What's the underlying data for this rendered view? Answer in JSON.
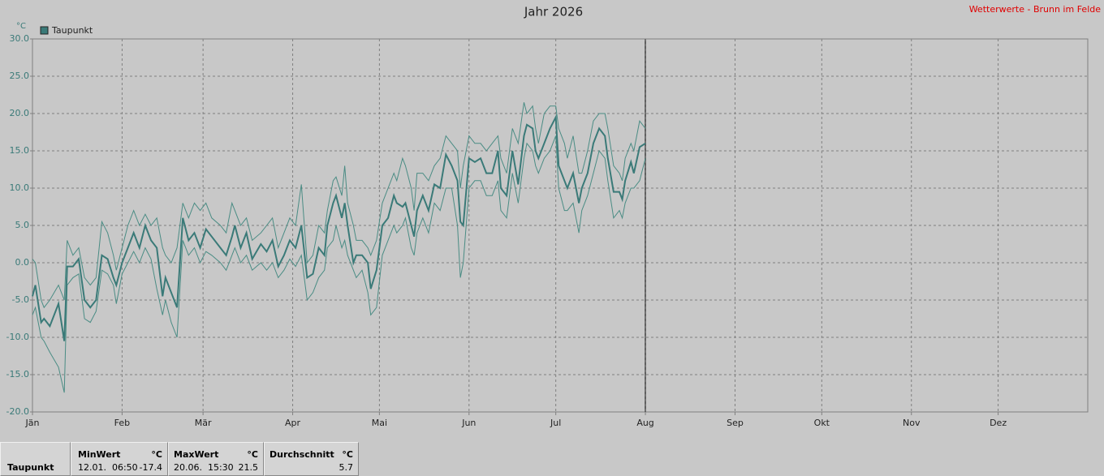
{
  "chart_data": {
    "type": "line",
    "title": "Jahr 2026",
    "source": "Wetterwerte - Brunn im Felde",
    "y_unit": "°C",
    "xlim": [
      1,
      366
    ],
    "xticks": [
      {
        "value": 1,
        "label": "Jän"
      },
      {
        "value": 32,
        "label": "Feb"
      },
      {
        "value": 60,
        "label": "Mär"
      },
      {
        "value": 91,
        "label": "Apr"
      },
      {
        "value": 121,
        "label": "Mai"
      },
      {
        "value": 152,
        "label": "Jun"
      },
      {
        "value": 182,
        "label": "Jul"
      },
      {
        "value": 213,
        "label": "Aug"
      },
      {
        "value": 244,
        "label": "Sep"
      },
      {
        "value": 274,
        "label": "Okt"
      },
      {
        "value": 305,
        "label": "Nov"
      },
      {
        "value": 335,
        "label": "Dez"
      }
    ],
    "ylim": [
      -20,
      30
    ],
    "yticks": [
      {
        "value": -20,
        "label": "-20.0"
      },
      {
        "value": -15,
        "label": "-15.0"
      },
      {
        "value": -10,
        "label": "-10.0"
      },
      {
        "value": -5,
        "label": "-5.0"
      },
      {
        "value": 0,
        "label": "0.0"
      },
      {
        "value": 5,
        "label": "5.0"
      },
      {
        "value": 10,
        "label": "10.0"
      },
      {
        "value": 15,
        "label": "15.0"
      },
      {
        "value": 20,
        "label": "20.0"
      },
      {
        "value": 25,
        "label": "25.0"
      },
      {
        "value": 30,
        "label": "30.0"
      }
    ],
    "grid": true,
    "x": [
      1,
      2,
      4,
      5,
      7,
      10,
      12,
      13,
      15,
      17,
      19,
      21,
      23,
      25,
      27,
      29,
      30,
      32,
      34,
      36,
      38,
      40,
      42,
      44,
      46,
      47,
      49,
      51,
      53,
      55,
      57,
      59,
      61,
      63,
      66,
      68,
      70,
      71,
      73,
      75,
      77,
      80,
      82,
      84,
      86,
      88,
      90,
      92,
      94,
      96,
      98,
      100,
      102,
      103,
      105,
      106,
      108,
      109,
      110,
      112,
      113,
      115,
      117,
      118,
      120,
      122,
      124,
      126,
      127,
      129,
      130,
      132,
      133,
      134,
      136,
      138,
      140,
      142,
      144,
      146,
      148,
      149,
      150,
      152,
      154,
      156,
      158,
      160,
      162,
      163,
      165,
      167,
      169,
      171,
      172,
      174,
      175,
      176,
      178,
      180,
      182,
      183,
      185,
      186,
      188,
      190,
      191,
      193,
      195,
      197,
      199,
      200,
      202,
      204,
      205,
      206,
      208,
      209,
      211,
      213
    ],
    "series": [
      {
        "name": "Taupunkt",
        "color": "#3a7a78",
        "values": [
          -4.5,
          -3,
          -8,
          -7.5,
          -8.5,
          -5.5,
          -10.5,
          -0.5,
          -0.5,
          0.5,
          -5,
          -6,
          -5,
          1,
          0.5,
          -2,
          -3,
          0,
          2,
          4,
          2,
          5,
          3,
          2,
          -4.5,
          -2,
          -4,
          -6,
          6,
          3,
          4,
          2,
          4.5,
          3.5,
          2,
          1,
          3.5,
          5,
          2,
          4,
          0.5,
          2.5,
          1.5,
          3,
          -0.5,
          1,
          3,
          2,
          5,
          -2,
          -1.5,
          2,
          1,
          5,
          8,
          9,
          6,
          8,
          5,
          0,
          1,
          1,
          0,
          -3.5,
          -1,
          5,
          6,
          9,
          8,
          7.5,
          8,
          5,
          3.5,
          7,
          9,
          7,
          10.5,
          10,
          14.5,
          13,
          11,
          5.5,
          5,
          14,
          13.5,
          14,
          12,
          12,
          15,
          10,
          9,
          15,
          10.5,
          17,
          18.5,
          18,
          15,
          14,
          16,
          18,
          19.5,
          13,
          11,
          10,
          12,
          8,
          10,
          12,
          16,
          18,
          17,
          14,
          9.5,
          9.5,
          8.5,
          11,
          13.5,
          12,
          15.5,
          16
        ]
      },
      {
        "color": "#4a8c84",
        "values": [
          -7,
          -6,
          -10,
          -10.5,
          -12,
          -14,
          -17.4,
          -3,
          -2,
          -1.5,
          -7.5,
          -8,
          -6.5,
          -1,
          -1.5,
          -3,
          -5.5,
          -1.5,
          0,
          1.5,
          0,
          2,
          0.5,
          -3.5,
          -7,
          -5,
          -8,
          -10,
          3,
          1,
          2,
          0,
          1.5,
          1,
          0,
          -1,
          1,
          2,
          0,
          1,
          -1,
          0,
          -1,
          0,
          -2,
          -1,
          0.5,
          -0.5,
          1,
          -5,
          -4,
          -2,
          -1,
          2,
          3,
          5,
          2,
          3,
          1,
          -1,
          -2,
          -1,
          -4,
          -7,
          -6,
          1,
          3,
          5,
          4,
          5,
          6,
          2,
          1,
          4,
          6,
          4,
          8,
          7,
          10,
          10,
          5,
          -2,
          0,
          10,
          11,
          11,
          9,
          9,
          11,
          7,
          6,
          12,
          8,
          14,
          16,
          15,
          13,
          12,
          14,
          15,
          17,
          10,
          7,
          7,
          8,
          4,
          7,
          9,
          12,
          15,
          14,
          11,
          6,
          7,
          6,
          8,
          10,
          10,
          11,
          14
        ]
      },
      {
        "color": "#4a8c84",
        "values": [
          0.5,
          0,
          -5,
          -6,
          -5,
          -3,
          -5,
          3,
          1,
          2,
          -2,
          -3,
          -2,
          5.5,
          4,
          1,
          -1,
          2,
          5,
          7,
          5,
          6.5,
          5,
          6,
          2,
          1,
          0,
          2,
          8,
          6,
          8,
          7,
          8,
          6,
          5,
          4,
          8,
          7,
          5,
          6,
          3,
          4,
          5,
          6,
          2,
          4,
          6,
          5,
          10.5,
          0,
          1,
          5,
          4,
          7,
          11,
          11.5,
          9,
          13,
          8,
          5,
          3,
          3,
          2,
          1,
          3,
          8,
          10,
          12,
          11,
          14,
          13,
          10,
          7,
          12,
          12,
          11,
          13,
          14,
          17,
          16,
          15,
          10,
          13,
          17,
          16,
          16,
          15,
          16,
          17,
          14,
          12,
          18,
          16,
          21.5,
          20,
          21,
          18,
          16,
          20,
          21,
          21,
          18,
          16,
          14,
          17,
          12,
          12,
          15,
          19,
          20,
          20,
          18,
          13,
          12,
          11,
          14,
          16,
          15,
          19,
          18
        ]
      }
    ]
  },
  "stats": {
    "row_label": "Taupunkt",
    "columns": [
      {
        "header": "MinWert",
        "unit": "°C",
        "time": "12.01.  06:50",
        "value": "-17.4"
      },
      {
        "header": "MaxWert",
        "unit": "°C",
        "time": "20.06.  15:30",
        "value": "21.5"
      },
      {
        "header": "Durchschnitt",
        "unit": "°C",
        "value": "5.7"
      }
    ]
  }
}
